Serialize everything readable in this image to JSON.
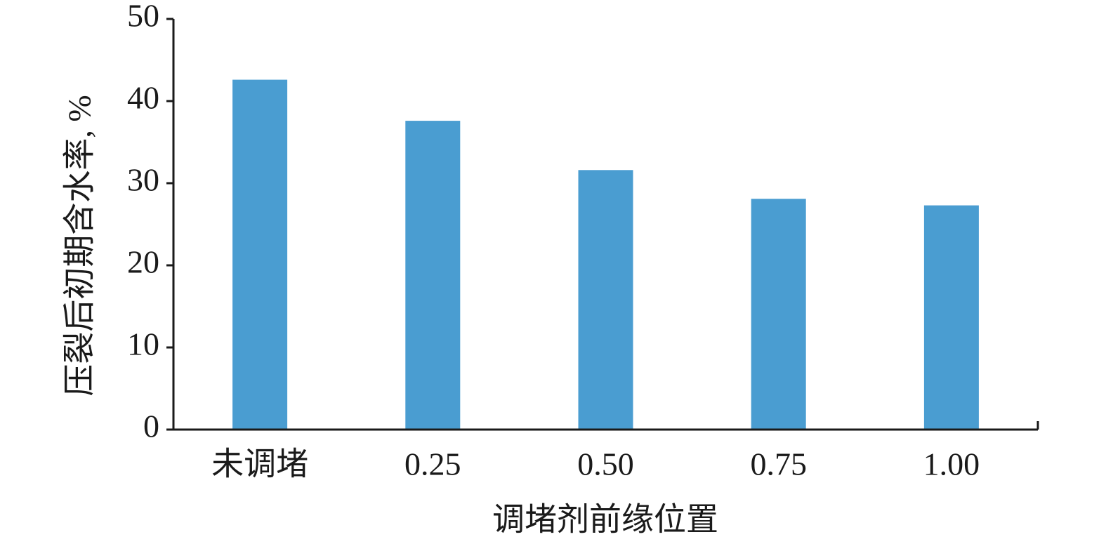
{
  "chart_data": {
    "type": "bar",
    "x_label": "调堵剂前缘位置",
    "y_label": "压裂后初期含水率, %",
    "categories": [
      "未调堵",
      "0.25",
      "0.50",
      "0.75",
      "1.00"
    ],
    "values": [
      42.6,
      37.6,
      31.6,
      28.1,
      27.3
    ],
    "color": "#4a9dd1",
    "ylim": [
      0,
      50
    ],
    "yticks": [
      0,
      10,
      20,
      30,
      40,
      50
    ],
    "grid": false
  }
}
